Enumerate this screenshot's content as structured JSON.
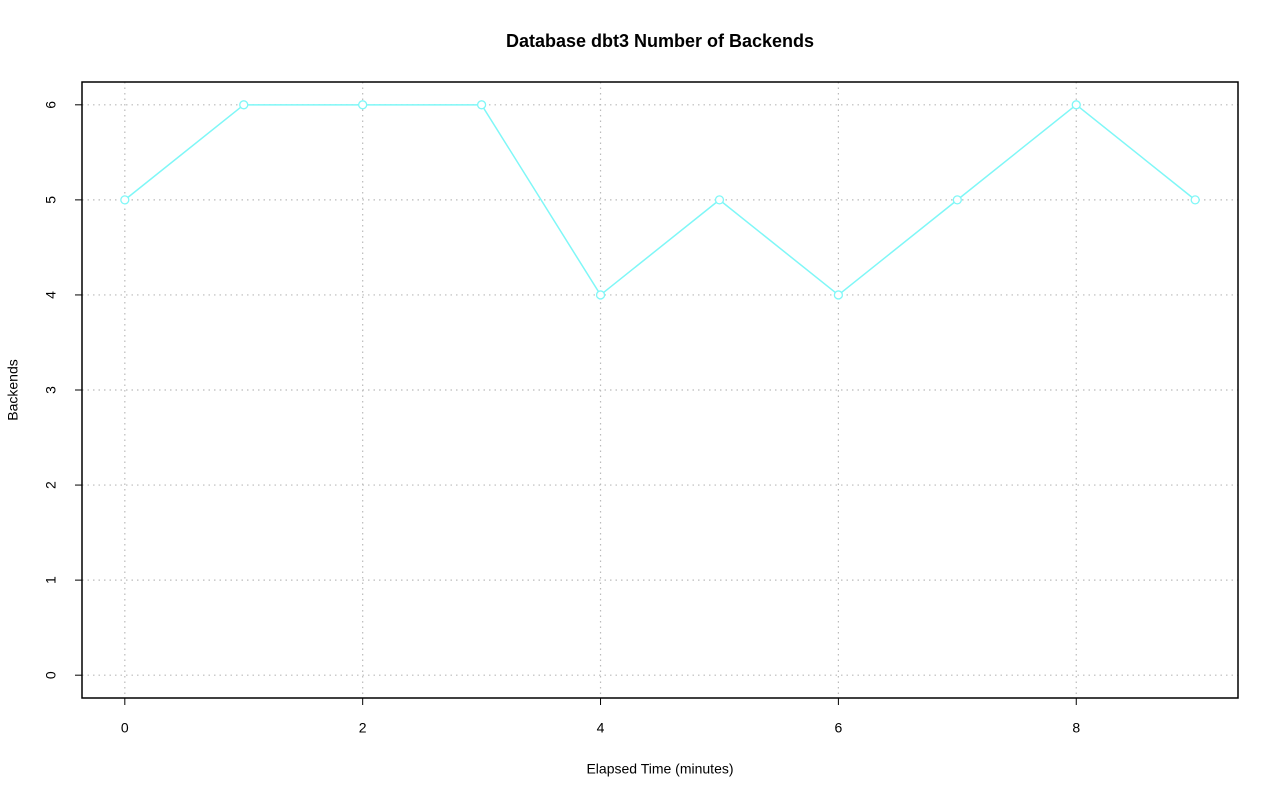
{
  "chart_data": {
    "type": "line",
    "title": "Database dbt3 Number of Backends",
    "xlabel": "Elapsed Time (minutes)",
    "ylabel": "Backends",
    "x": [
      0,
      1,
      2,
      3,
      4,
      5,
      6,
      7,
      8,
      9
    ],
    "series": [
      {
        "name": "Backends",
        "color": "#7ff7f7",
        "values": [
          5,
          6,
          6,
          6,
          4,
          5,
          4,
          5,
          6,
          5
        ]
      }
    ],
    "xlim": [
      -0.36,
      9.36
    ],
    "ylim": [
      -0.24,
      6.24
    ],
    "xticks": [
      0,
      2,
      4,
      6,
      8
    ],
    "yticks": [
      0,
      1,
      2,
      3,
      4,
      5,
      6
    ],
    "grid": true
  }
}
